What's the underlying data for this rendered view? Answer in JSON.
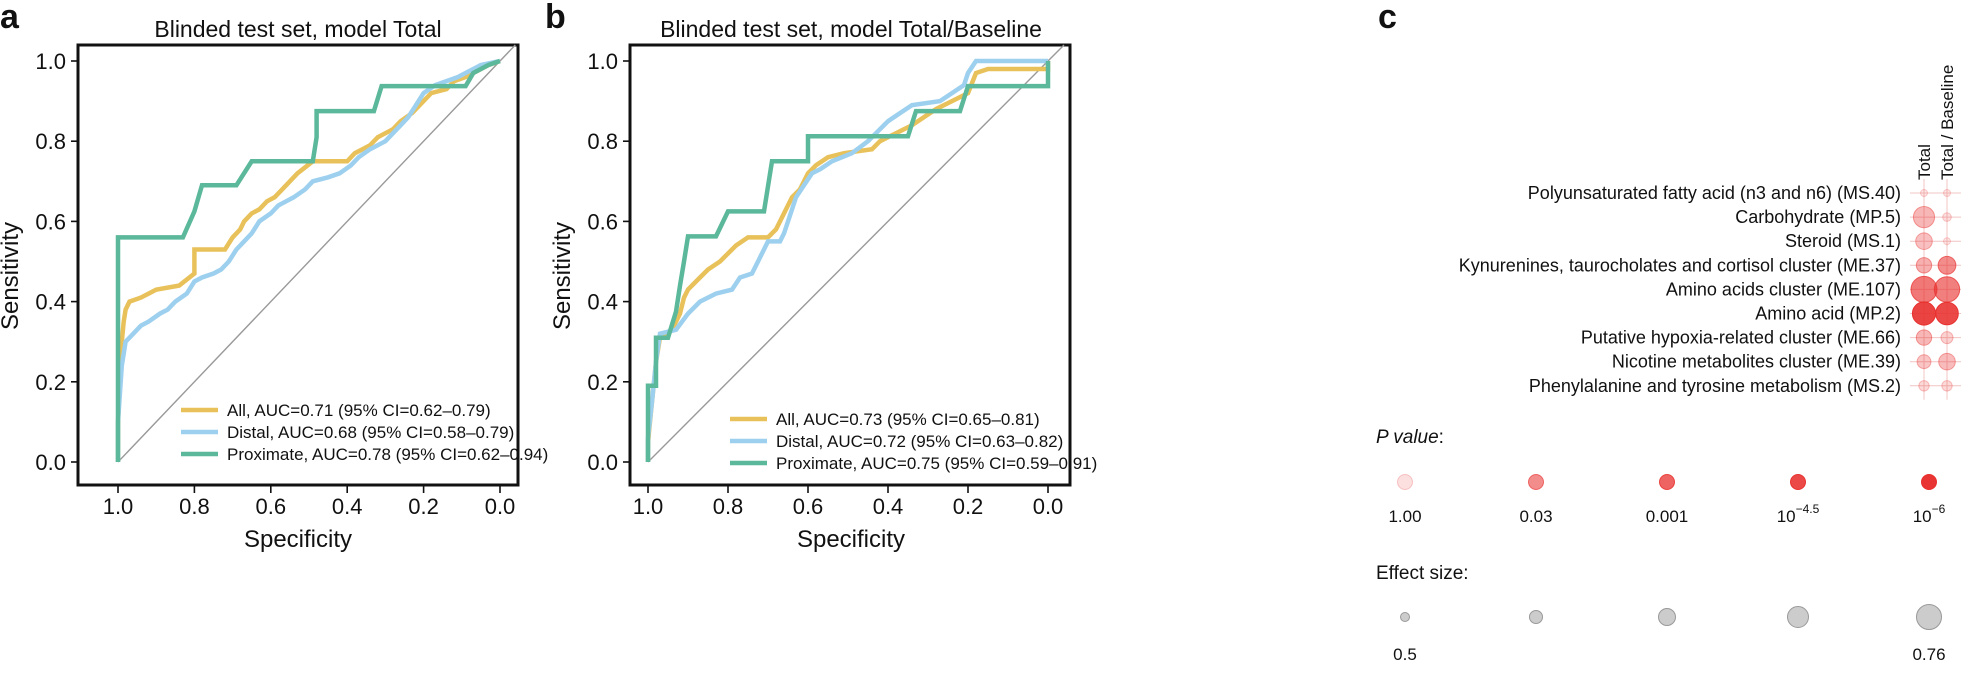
{
  "panels": {
    "a": {
      "letter": "a",
      "title": "Blinded test set, model Total",
      "xlabel": "Specificity",
      "ylabel": "Sensitivity"
    },
    "b": {
      "letter": "b",
      "title": "Blinded test set, model Total/Baseline",
      "xlabel": "Specificity",
      "ylabel": "Sensitivity"
    },
    "c": {
      "letter": "c",
      "p_title": "P value",
      "p_title_suffix": ":",
      "effect_title": "Effect size:"
    }
  },
  "colors": {
    "all": "#E8C15A",
    "distal": "#9DD0EE",
    "proximate": "#5BB89A",
    "diagonal": "#999999",
    "bubble_red": "#E8302E",
    "bubble_gray": "#BBBBBB"
  },
  "chart_data": [
    {
      "type": "line",
      "panel": "a",
      "title": "Blinded test set, model Total",
      "xlabel": "Specificity",
      "ylabel": "Sensitivity",
      "xlim": [
        1.0,
        0.0
      ],
      "ylim": [
        0.0,
        1.0
      ],
      "x_ticks": [
        "1.0",
        "0.8",
        "0.6",
        "0.4",
        "0.2",
        "0.0"
      ],
      "y_ticks": [
        "0.0",
        "0.2",
        "0.4",
        "0.6",
        "0.8",
        "1.0"
      ],
      "legend_position": "bottom-right",
      "series": [
        {
          "name": "All, AUC=0.71 (95% CI=0.62–0.79)",
          "key": "all",
          "points": [
            [
              1.0,
              0.0
            ],
            [
              1.0,
              0.1
            ],
            [
              0.995,
              0.2
            ],
            [
              0.99,
              0.3
            ],
            [
              0.985,
              0.35
            ],
            [
              0.98,
              0.38
            ],
            [
              0.97,
              0.4
            ],
            [
              0.94,
              0.41
            ],
            [
              0.92,
              0.42
            ],
            [
              0.9,
              0.43
            ],
            [
              0.84,
              0.44
            ],
            [
              0.8,
              0.47
            ],
            [
              0.8,
              0.53
            ],
            [
              0.72,
              0.53
            ],
            [
              0.7,
              0.56
            ],
            [
              0.68,
              0.58
            ],
            [
              0.67,
              0.6
            ],
            [
              0.65,
              0.62
            ],
            [
              0.63,
              0.63
            ],
            [
              0.61,
              0.65
            ],
            [
              0.59,
              0.66
            ],
            [
              0.57,
              0.68
            ],
            [
              0.55,
              0.7
            ],
            [
              0.53,
              0.72
            ],
            [
              0.49,
              0.75
            ],
            [
              0.4,
              0.75
            ],
            [
              0.38,
              0.77
            ],
            [
              0.36,
              0.78
            ],
            [
              0.34,
              0.79
            ],
            [
              0.32,
              0.81
            ],
            [
              0.28,
              0.83
            ],
            [
              0.26,
              0.85
            ],
            [
              0.23,
              0.87
            ],
            [
              0.2,
              0.9
            ],
            [
              0.18,
              0.92
            ],
            [
              0.14,
              0.93
            ],
            [
              0.12,
              0.95
            ],
            [
              0.09,
              0.96
            ],
            [
              0.07,
              0.97
            ],
            [
              0.05,
              0.98
            ],
            [
              0.03,
              0.99
            ],
            [
              0.0,
              1.0
            ]
          ]
        },
        {
          "name": "Distal, AUC=0.68 (95% CI=0.58–0.79)",
          "key": "distal",
          "points": [
            [
              1.0,
              0.0
            ],
            [
              1.0,
              0.1
            ],
            [
              0.99,
              0.24
            ],
            [
              0.98,
              0.3
            ],
            [
              0.96,
              0.32
            ],
            [
              0.94,
              0.34
            ],
            [
              0.92,
              0.35
            ],
            [
              0.89,
              0.37
            ],
            [
              0.87,
              0.38
            ],
            [
              0.85,
              0.4
            ],
            [
              0.82,
              0.42
            ],
            [
              0.8,
              0.45
            ],
            [
              0.78,
              0.46
            ],
            [
              0.75,
              0.47
            ],
            [
              0.73,
              0.48
            ],
            [
              0.71,
              0.5
            ],
            [
              0.69,
              0.53
            ],
            [
              0.67,
              0.55
            ],
            [
              0.65,
              0.57
            ],
            [
              0.63,
              0.6
            ],
            [
              0.6,
              0.62
            ],
            [
              0.58,
              0.64
            ],
            [
              0.56,
              0.65
            ],
            [
              0.54,
              0.66
            ],
            [
              0.51,
              0.68
            ],
            [
              0.49,
              0.7
            ],
            [
              0.45,
              0.71
            ],
            [
              0.42,
              0.72
            ],
            [
              0.39,
              0.74
            ],
            [
              0.37,
              0.76
            ],
            [
              0.34,
              0.78
            ],
            [
              0.3,
              0.8
            ],
            [
              0.28,
              0.82
            ],
            [
              0.26,
              0.84
            ],
            [
              0.24,
              0.86
            ],
            [
              0.22,
              0.89
            ],
            [
              0.2,
              0.92
            ],
            [
              0.17,
              0.94
            ],
            [
              0.14,
              0.95
            ],
            [
              0.11,
              0.96
            ],
            [
              0.09,
              0.97
            ],
            [
              0.07,
              0.98
            ],
            [
              0.05,
              0.99
            ],
            [
              0.0,
              1.0
            ]
          ]
        },
        {
          "name": "Proximate, AUC=0.78 (95% CI=0.62–0.94)",
          "key": "proximate",
          "points": [
            [
              1.0,
              0.0
            ],
            [
              1.0,
              0.56
            ],
            [
              0.83,
              0.56
            ],
            [
              0.8,
              0.625
            ],
            [
              0.78,
              0.69
            ],
            [
              0.69,
              0.69
            ],
            [
              0.65,
              0.75
            ],
            [
              0.49,
              0.75
            ],
            [
              0.48,
              0.81
            ],
            [
              0.48,
              0.875
            ],
            [
              0.33,
              0.875
            ],
            [
              0.31,
              0.9375
            ],
            [
              0.09,
              0.9375
            ],
            [
              0.07,
              0.97
            ],
            [
              0.03,
              0.99
            ],
            [
              0.0,
              1.0
            ]
          ]
        }
      ]
    },
    {
      "type": "line",
      "panel": "b",
      "title": "Blinded test set, model Total/Baseline",
      "xlabel": "Specificity",
      "ylabel": "Sensitivity",
      "xlim": [
        1.0,
        0.0
      ],
      "ylim": [
        0.0,
        1.0
      ],
      "x_ticks": [
        "1.0",
        "0.8",
        "0.6",
        "0.4",
        "0.2",
        "0.0"
      ],
      "y_ticks": [
        "0.0",
        "0.2",
        "0.4",
        "0.6",
        "0.8",
        "1.0"
      ],
      "legend_position": "bottom-right",
      "series": [
        {
          "name": "All, AUC=0.73 (95% CI=0.65–0.81)",
          "key": "all",
          "points": [
            [
              1.0,
              0.0
            ],
            [
              1.0,
              0.05
            ],
            [
              0.99,
              0.15
            ],
            [
              0.98,
              0.25
            ],
            [
              0.97,
              0.31
            ],
            [
              0.94,
              0.33
            ],
            [
              0.92,
              0.37
            ],
            [
              0.91,
              0.41
            ],
            [
              0.9,
              0.43
            ],
            [
              0.88,
              0.45
            ],
            [
              0.85,
              0.48
            ],
            [
              0.82,
              0.5
            ],
            [
              0.78,
              0.54
            ],
            [
              0.75,
              0.56
            ],
            [
              0.7,
              0.56
            ],
            [
              0.68,
              0.58
            ],
            [
              0.67,
              0.6
            ],
            [
              0.66,
              0.62
            ],
            [
              0.64,
              0.66
            ],
            [
              0.62,
              0.68
            ],
            [
              0.6,
              0.72
            ],
            [
              0.58,
              0.74
            ],
            [
              0.55,
              0.76
            ],
            [
              0.51,
              0.77
            ],
            [
              0.44,
              0.78
            ],
            [
              0.42,
              0.8
            ],
            [
              0.38,
              0.82
            ],
            [
              0.34,
              0.84
            ],
            [
              0.31,
              0.86
            ],
            [
              0.28,
              0.88
            ],
            [
              0.24,
              0.9
            ],
            [
              0.2,
              0.92
            ],
            [
              0.18,
              0.97
            ],
            [
              0.15,
              0.98
            ],
            [
              0.0,
              0.98
            ],
            [
              0.0,
              1.0
            ]
          ]
        },
        {
          "name": "Distal, AUC=0.72 (95% CI=0.63–0.82)",
          "key": "distal",
          "points": [
            [
              1.0,
              0.0
            ],
            [
              1.0,
              0.06
            ],
            [
              0.99,
              0.15
            ],
            [
              0.98,
              0.25
            ],
            [
              0.97,
              0.32
            ],
            [
              0.93,
              0.33
            ],
            [
              0.9,
              0.37
            ],
            [
              0.87,
              0.4
            ],
            [
              0.83,
              0.42
            ],
            [
              0.79,
              0.43
            ],
            [
              0.77,
              0.46
            ],
            [
              0.74,
              0.47
            ],
            [
              0.72,
              0.51
            ],
            [
              0.7,
              0.55
            ],
            [
              0.67,
              0.55
            ],
            [
              0.66,
              0.57
            ],
            [
              0.65,
              0.6
            ],
            [
              0.64,
              0.63
            ],
            [
              0.63,
              0.66
            ],
            [
              0.61,
              0.69
            ],
            [
              0.59,
              0.72
            ],
            [
              0.57,
              0.73
            ],
            [
              0.54,
              0.75
            ],
            [
              0.49,
              0.77
            ],
            [
              0.45,
              0.8
            ],
            [
              0.42,
              0.83
            ],
            [
              0.4,
              0.85
            ],
            [
              0.37,
              0.87
            ],
            [
              0.34,
              0.89
            ],
            [
              0.27,
              0.9
            ],
            [
              0.24,
              0.92
            ],
            [
              0.21,
              0.94
            ],
            [
              0.2,
              0.97
            ],
            [
              0.18,
              1.0
            ],
            [
              0.0,
              1.0
            ]
          ]
        },
        {
          "name": "Proximate, AUC=0.75 (95% CI=0.59–0.91)",
          "key": "proximate",
          "points": [
            [
              1.0,
              0.0
            ],
            [
              1.0,
              0.19
            ],
            [
              0.98,
              0.19
            ],
            [
              0.98,
              0.31
            ],
            [
              0.95,
              0.31
            ],
            [
              0.93,
              0.375
            ],
            [
              0.92,
              0.44
            ],
            [
              0.91,
              0.5
            ],
            [
              0.9,
              0.5625
            ],
            [
              0.83,
              0.5625
            ],
            [
              0.8,
              0.625
            ],
            [
              0.71,
              0.625
            ],
            [
              0.7,
              0.6875
            ],
            [
              0.69,
              0.75
            ],
            [
              0.6,
              0.75
            ],
            [
              0.6,
              0.8125
            ],
            [
              0.35,
              0.8125
            ],
            [
              0.33,
              0.875
            ],
            [
              0.22,
              0.875
            ],
            [
              0.2,
              0.9375
            ],
            [
              0.0,
              0.9375
            ],
            [
              0.0,
              1.0
            ]
          ]
        }
      ]
    },
    {
      "type": "scatter",
      "panel": "c",
      "columns": [
        "Total",
        "Total / Baseline"
      ],
      "rows": [
        "Polyunsaturated fatty acid (n3 and n6) (MS.40)",
        "Carbohydrate (MP.5)",
        "Steroid (MS.1)",
        "Kynurenines, taurocholates and cortisol cluster (ME.37)",
        "Amino acids cluster (ME.107)",
        "Amino acid (MP.2)",
        "Putative hypoxia-related cluster (ME.66)",
        "Nicotine metabolites cluster (ME.39)",
        "Phenylalanine and tyrosine metabolism (MS.2)"
      ],
      "cells": [
        [
          {
            "effect": 0.2,
            "alpha": 0.12
          },
          {
            "effect": 0.2,
            "alpha": 0.12
          }
        ],
        [
          {
            "effect": 0.62,
            "alpha": 0.35
          },
          {
            "effect": 0.25,
            "alpha": 0.15
          }
        ],
        [
          {
            "effect": 0.48,
            "alpha": 0.3
          },
          {
            "effect": 0.2,
            "alpha": 0.12
          }
        ],
        [
          {
            "effect": 0.45,
            "alpha": 0.38
          },
          {
            "effect": 0.52,
            "alpha": 0.55
          }
        ],
        [
          {
            "effect": 0.76,
            "alpha": 0.65
          },
          {
            "effect": 0.74,
            "alpha": 0.62
          }
        ],
        [
          {
            "effect": 0.68,
            "alpha": 0.9
          },
          {
            "effect": 0.66,
            "alpha": 0.88
          }
        ],
        [
          {
            "effect": 0.45,
            "alpha": 0.35
          },
          {
            "effect": 0.35,
            "alpha": 0.22
          }
        ],
        [
          {
            "effect": 0.4,
            "alpha": 0.28
          },
          {
            "effect": 0.48,
            "alpha": 0.32
          }
        ],
        [
          {
            "effect": 0.3,
            "alpha": 0.18
          },
          {
            "effect": 0.3,
            "alpha": 0.18
          }
        ]
      ],
      "p_value_legend": [
        {
          "label": "1.00",
          "base": "",
          "exp": "",
          "alpha": 0.15
        },
        {
          "label": "0.03",
          "base": "",
          "exp": "",
          "alpha": 0.55
        },
        {
          "label": "0.001",
          "base": "",
          "exp": "",
          "alpha": 0.75
        },
        {
          "label": "",
          "base": "10",
          "exp": "−4.5",
          "alpha": 0.88
        },
        {
          "label": "",
          "base": "10",
          "exp": "−6",
          "alpha": 0.98
        }
      ],
      "effect_size_legend": [
        {
          "label": "0.5",
          "effect": 0.5
        },
        {
          "label": "",
          "effect": 0.565
        },
        {
          "label": "",
          "effect": 0.63
        },
        {
          "label": "",
          "effect": 0.695
        },
        {
          "label": "0.76",
          "effect": 0.76
        }
      ]
    }
  ]
}
